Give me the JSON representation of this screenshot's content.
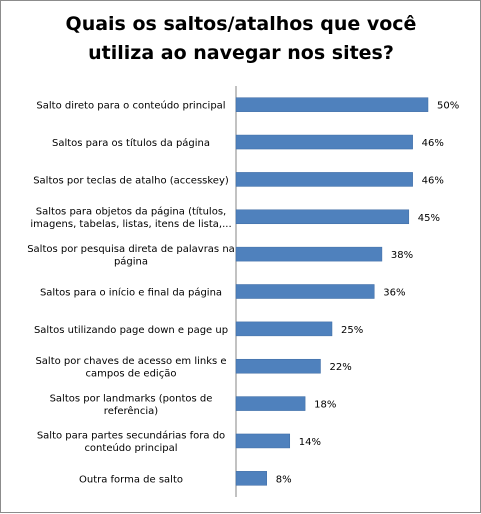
{
  "chart_data": {
    "type": "bar",
    "orientation": "horizontal",
    "title": [
      "Quais os saltos/atalhos que você",
      "utiliza ao navegar nos sites?"
    ],
    "categories": [
      [
        "Salto direto para o conteúdo principal"
      ],
      [
        "Saltos para os títulos da página"
      ],
      [
        "Saltos por teclas de atalho (accesskey)"
      ],
      [
        "Saltos para objetos da página (títulos,",
        "imagens, tabelas, listas, itens de lista,..."
      ],
      [
        "Saltos por pesquisa direta de palavras na",
        "página"
      ],
      [
        "Saltos para o início e final da página"
      ],
      [
        "Saltos utilizando page down e page up"
      ],
      [
        "Salto por chaves de acesso em links e",
        "campos de edição"
      ],
      [
        "Saltos por landmarks (pontos de",
        "referência)"
      ],
      [
        "Salto para partes secundárias fora do",
        "conteúdo principal"
      ],
      [
        "Outra forma de salto"
      ]
    ],
    "values": [
      50,
      46,
      46,
      45,
      38,
      36,
      25,
      22,
      18,
      14,
      8
    ],
    "data_labels": [
      "50%",
      "46%",
      "46%",
      "45%",
      "38%",
      "36%",
      "25%",
      "22%",
      "18%",
      "14%",
      "8%"
    ],
    "xlim": [
      0,
      50
    ],
    "grid": false,
    "legend": "none",
    "bar_color": "#4f81bd"
  }
}
